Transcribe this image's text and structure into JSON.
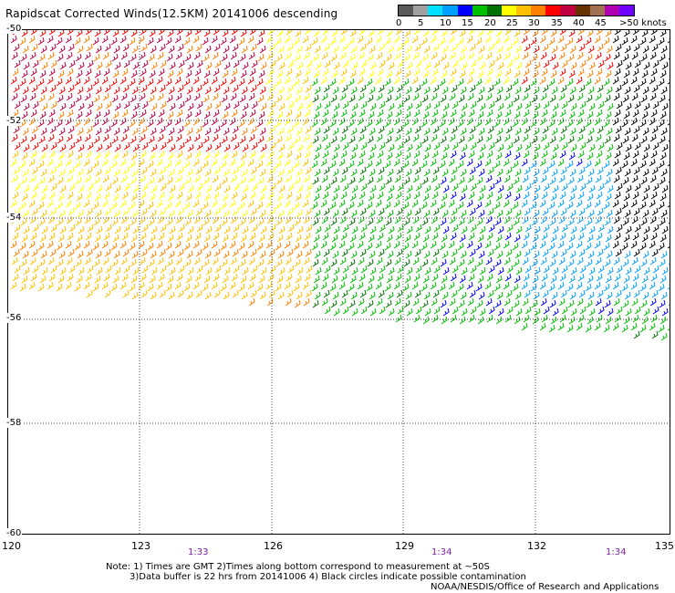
{
  "header": {
    "title": "Rapidscat Corrected Winds(12.5KM) 20141006 descending"
  },
  "legend": {
    "colors": [
      "#5a5a5a",
      "#a0a0a0",
      "#00e1ff",
      "#00a0ff",
      "#0000ff",
      "#00c000",
      "#007000",
      "#ffff00",
      "#ffc000",
      "#ff8000",
      "#ff0000",
      "#c00040",
      "#663300",
      "#a07050",
      "#b000b0",
      "#7000ff"
    ],
    "labels": [
      "0",
      "5",
      "10",
      "15",
      "20",
      "25",
      "30",
      "35",
      "40",
      "45",
      ">50 knots"
    ]
  },
  "axes": {
    "lat_labels": [
      "-50",
      "-52",
      "-54",
      "-56",
      "-58",
      "-60"
    ],
    "lon_labels": [
      "120",
      "123",
      "126",
      "129",
      "132",
      "135"
    ],
    "time_labels": [
      "1:33",
      "1:34",
      "1:34"
    ]
  },
  "notes": {
    "line1": "Note: 1) Times are GMT 2)Times along bottom correspond to measurement at ~50S",
    "line2": "3)Data buffer is 22 hrs from 20141006 4) Black circles indicate possible contamination",
    "credit": "NOAA/NESDIS/Office of Research and Applications"
  },
  "map": {
    "lon_range": [
      120,
      135
    ],
    "lat_range": [
      -60,
      -50
    ],
    "grid": true
  }
}
